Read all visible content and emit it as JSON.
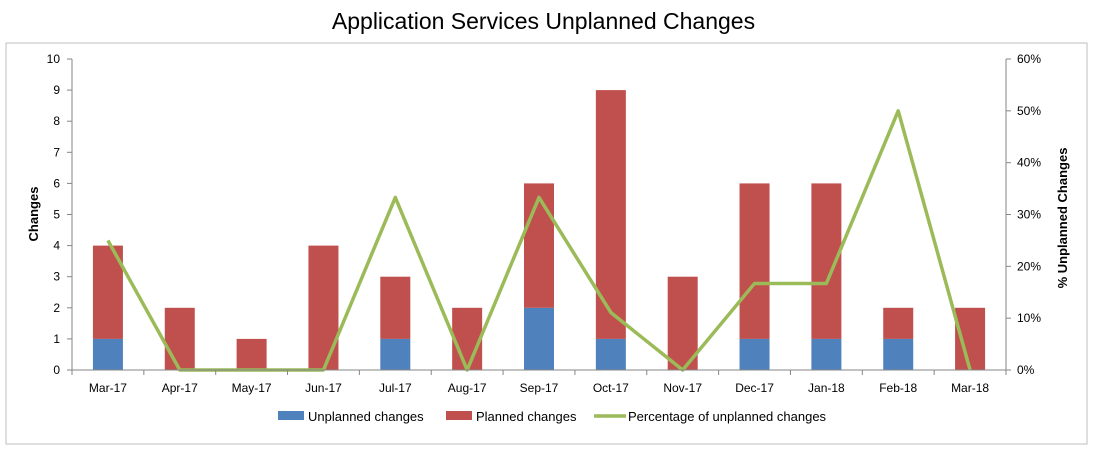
{
  "chart_data": {
    "type": "bar",
    "stacked": true,
    "title": "Application Services Unplanned Changes",
    "xlabel": "",
    "ylabel": "Changes",
    "y2label": "% Unplanned Changes",
    "ylim": [
      0,
      10
    ],
    "y2lim": [
      0,
      60
    ],
    "y_ticks": [
      "0",
      "1",
      "2",
      "3",
      "4",
      "5",
      "6",
      "7",
      "8",
      "9",
      "10"
    ],
    "y2_ticks": [
      "0%",
      "10%",
      "20%",
      "30%",
      "40%",
      "50%",
      "60%"
    ],
    "grid": false,
    "legend_position": "bottom",
    "categories": [
      "Mar-17",
      "Apr-17",
      "May-17",
      "Jun-17",
      "Jul-17",
      "Aug-17",
      "Sep-17",
      "Oct-17",
      "Nov-17",
      "Dec-17",
      "Jan-18",
      "Feb-18",
      "Mar-18"
    ],
    "series": [
      {
        "name": "Unplanned changes",
        "type": "bar",
        "axis": "left",
        "color": "#4f81bd",
        "values": [
          1,
          0,
          0,
          0,
          1,
          0,
          2,
          1,
          0,
          1,
          1,
          1,
          0
        ]
      },
      {
        "name": "Planned changes",
        "type": "bar",
        "axis": "left",
        "color": "#c0504d",
        "values": [
          3,
          2,
          1,
          4,
          2,
          2,
          4,
          8,
          3,
          5,
          5,
          1,
          2
        ]
      },
      {
        "name": "Percentage of unplanned changes",
        "type": "line",
        "axis": "right",
        "color": "#9bbb59",
        "values": [
          25,
          0,
          0,
          0,
          33.3,
          0,
          33.3,
          11.1,
          0,
          16.7,
          16.7,
          50,
          0
        ]
      }
    ]
  }
}
